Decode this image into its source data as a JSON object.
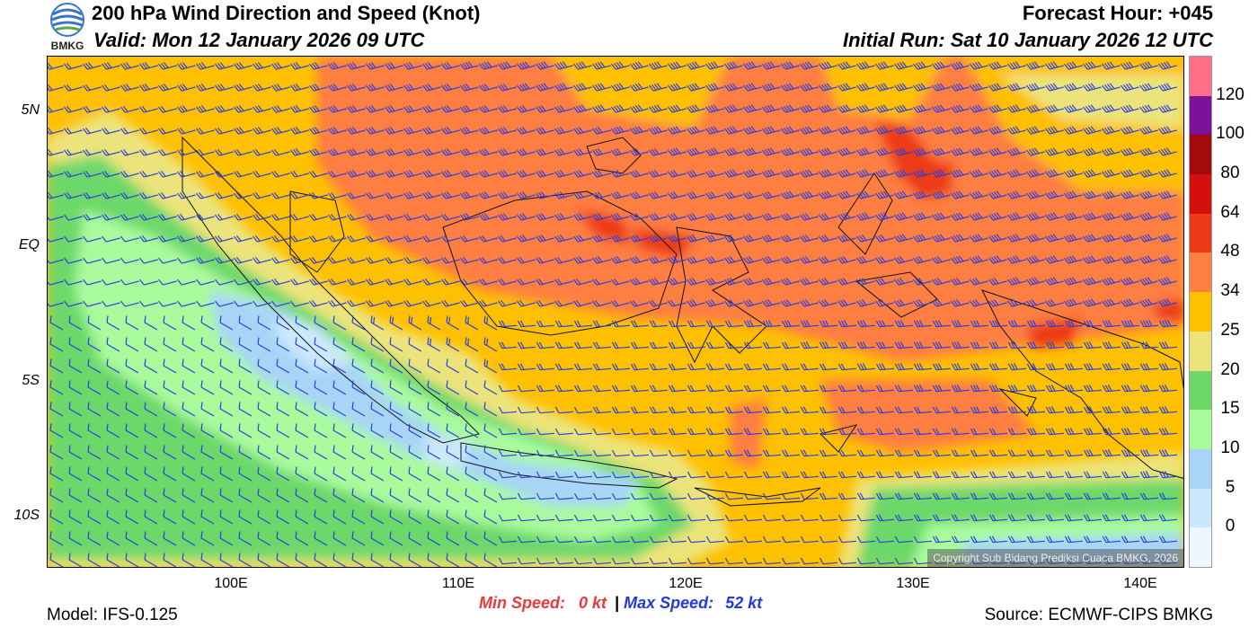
{
  "header": {
    "title": "200 hPa Wind Direction and Speed (Knot)",
    "valid": "Valid: Mon 12 January 2026 09 UTC",
    "forecast_hour": "Forecast Hour: +045",
    "initial_run": "Initial Run: Sat 10 January 2026 12 UTC",
    "logo_text": "BMKG"
  },
  "map": {
    "lat_labels": [
      "5N",
      "EQ",
      "5S",
      "10S"
    ],
    "lon_labels": [
      "100E",
      "110E",
      "120E",
      "130E",
      "140E"
    ],
    "lat_range": [
      -12,
      7
    ],
    "lon_range": [
      92,
      142
    ],
    "copyright": "Copyright Sub Bidang Prediksi Cuaca BMKG, 2026"
  },
  "colorbar": {
    "labels": [
      "120",
      "100",
      "80",
      "64",
      "48",
      "34",
      "25",
      "20",
      "15",
      "10",
      "5",
      "0"
    ],
    "colors": [
      "#ff6d87",
      "#7a129a",
      "#a10b0b",
      "#d50e0e",
      "#ec3a18",
      "#ff7e42",
      "#ffc000",
      "#ece47a",
      "#6dd86a",
      "#a9fb9c",
      "#a8d5f5",
      "#cce8fd",
      "#eef6ff"
    ],
    "bounds": [
      0,
      5,
      10,
      15,
      20,
      25,
      34,
      48,
      64,
      80,
      100,
      120,
      130
    ]
  },
  "footer": {
    "model": "Model: IFS-0.125",
    "min_label": "Min Speed:",
    "min_value": "0 kt",
    "separator": "|",
    "max_label": "Max Speed:",
    "max_value": "52 kt",
    "source": "Source: ECMWF-CIPS BMKG"
  },
  "colors": {
    "barb": "#2b3fe0",
    "min_speed": "#e8393b",
    "max_speed": "#2438e0"
  }
}
